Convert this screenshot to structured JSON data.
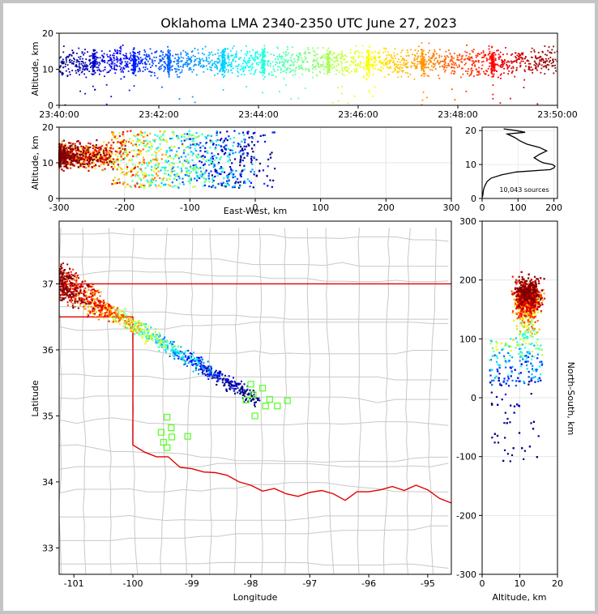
{
  "figure": {
    "title": "Oklahoma LMA 2340-2350 UTC June 27, 2023",
    "source_count_label": "10,043 sources"
  },
  "chart_data": [
    {
      "id": "time-altitude",
      "type": "scatter",
      "title": "Oklahoma LMA 2340-2350 UTC June 27, 2023",
      "xlabel": "",
      "ylabel": "Altitude, km",
      "x_ticks": [
        "23:40:00",
        "23:42:00",
        "23:44:00",
        "23:46:00",
        "23:48:00",
        "23:50:00"
      ],
      "y_ticks": [
        0,
        10,
        20
      ],
      "xlim_minutes": [
        0,
        10
      ],
      "ylim": [
        0,
        20
      ],
      "color_scale": "jet (blue=early, red=late)",
      "altitude_band_km": [
        5,
        20
      ]
    },
    {
      "id": "east-west-altitude",
      "type": "scatter",
      "xlabel": "East-West, km",
      "ylabel": "Altitude, km",
      "x_ticks": [
        -300,
        -200,
        -100,
        0,
        100,
        200,
        300
      ],
      "y_ticks": [
        0,
        10,
        20
      ],
      "xlim": [
        -300,
        300
      ],
      "ylim": [
        0,
        20
      ],
      "grid": true
    },
    {
      "id": "altitude-histogram",
      "type": "line",
      "xlabel": "",
      "ylabel": "",
      "x_ticks": [
        0,
        100,
        200
      ],
      "y_ticks": [
        0,
        10,
        20
      ],
      "xlim": [
        0,
        210
      ],
      "ylim": [
        0,
        21
      ],
      "annotation": "10,043 sources",
      "profile": [
        {
          "alt": 0.2,
          "count": 0
        },
        {
          "alt": 1.0,
          "count": 2
        },
        {
          "alt": 2.0,
          "count": 3
        },
        {
          "alt": 3.0,
          "count": 5
        },
        {
          "alt": 4.0,
          "count": 9
        },
        {
          "alt": 5.0,
          "count": 14
        },
        {
          "alt": 6.0,
          "count": 25
        },
        {
          "alt": 7.0,
          "count": 55
        },
        {
          "alt": 7.8,
          "count": 95
        },
        {
          "alt": 8.5,
          "count": 190
        },
        {
          "alt": 9.0,
          "count": 200
        },
        {
          "alt": 9.5,
          "count": 203
        },
        {
          "alt": 10.0,
          "count": 196
        },
        {
          "alt": 10.5,
          "count": 170
        },
        {
          "alt": 11.0,
          "count": 160
        },
        {
          "alt": 12.0,
          "count": 145
        },
        {
          "alt": 13.0,
          "count": 160
        },
        {
          "alt": 14.0,
          "count": 180
        },
        {
          "alt": 15.0,
          "count": 160
        },
        {
          "alt": 16.0,
          "count": 125
        },
        {
          "alt": 17.0,
          "count": 105
        },
        {
          "alt": 18.0,
          "count": 90
        },
        {
          "alt": 19.0,
          "count": 70
        },
        {
          "alt": 19.5,
          "count": 120
        },
        {
          "alt": 20.0,
          "count": 95
        },
        {
          "alt": 20.5,
          "count": 60
        }
      ]
    },
    {
      "id": "plan-view",
      "type": "scatter",
      "xlabel": "Longitude",
      "ylabel": "Latitude",
      "x_ticks": [
        -101,
        -100,
        -99,
        -98,
        -97,
        -96,
        -95
      ],
      "y_ticks": [
        33,
        34,
        35,
        36,
        37
      ],
      "xlim": [
        -101.25,
        -94.6
      ],
      "ylim": [
        32.6,
        37.95
      ],
      "lma_stations": [
        {
          "lon": -98.0,
          "lat": 35.48
        },
        {
          "lon": -97.8,
          "lat": 35.42
        },
        {
          "lon": -98.08,
          "lat": 35.24
        },
        {
          "lon": -97.96,
          "lat": 35.32
        },
        {
          "lon": -97.68,
          "lat": 35.25
        },
        {
          "lon": -97.55,
          "lat": 35.15
        },
        {
          "lon": -97.38,
          "lat": 35.23
        },
        {
          "lon": -97.93,
          "lat": 35.0
        },
        {
          "lon": -97.75,
          "lat": 35.15
        },
        {
          "lon": -99.42,
          "lat": 34.98
        },
        {
          "lon": -99.35,
          "lat": 34.82
        },
        {
          "lon": -99.52,
          "lat": 34.75
        },
        {
          "lon": -99.34,
          "lat": 34.68
        },
        {
          "lon": -99.07,
          "lat": 34.69
        },
        {
          "lon": -99.48,
          "lat": 34.6
        },
        {
          "lon": -99.42,
          "lat": 34.52
        }
      ]
    },
    {
      "id": "altitude-north-south",
      "type": "scatter",
      "xlabel": "Altitude, km",
      "ylabel": "North-South, km",
      "x_ticks": [
        0,
        10,
        20
      ],
      "y_ticks": [
        -300,
        -200,
        -100,
        0,
        100,
        200,
        300
      ],
      "xlim": [
        0,
        20
      ],
      "ylim": [
        -300,
        300
      ],
      "grid": true
    }
  ]
}
